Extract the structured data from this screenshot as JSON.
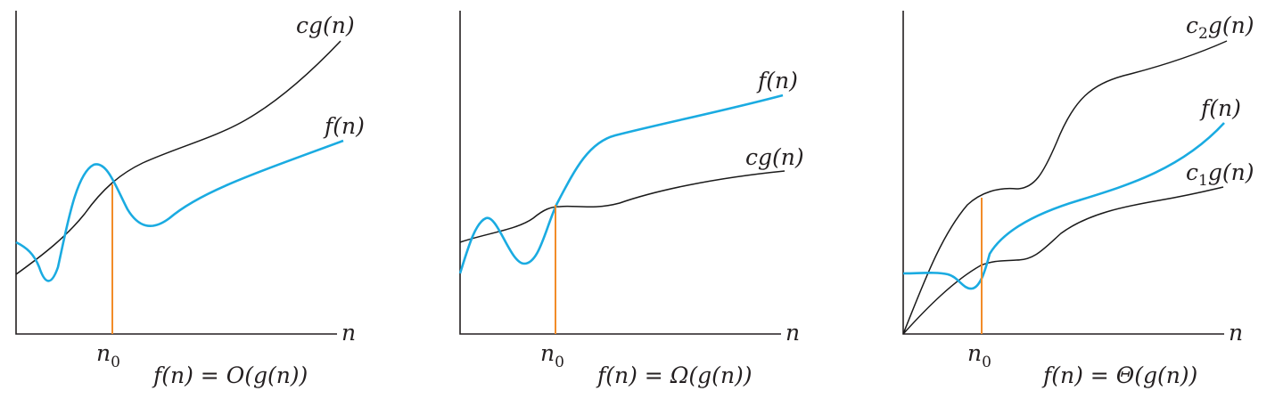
{
  "panels": [
    {
      "caption": "f(n) = O(g(n))",
      "x_axis_label": "n",
      "threshold_label": "n0",
      "curves": [
        {
          "label": "cg(n)",
          "kind": "upper"
        },
        {
          "label": "f(n)",
          "kind": "f"
        }
      ]
    },
    {
      "caption": "f(n) = Ω(g(n))",
      "x_axis_label": "n",
      "threshold_label": "n0",
      "curves": [
        {
          "label": "f(n)",
          "kind": "f"
        },
        {
          "label": "cg(n)",
          "kind": "lower"
        }
      ]
    },
    {
      "caption": "f(n) = Θ(g(n))",
      "x_axis_label": "n",
      "threshold_label": "n0",
      "curves": [
        {
          "label": "c2g(n)",
          "kind": "upper"
        },
        {
          "label": "f(n)",
          "kind": "f"
        },
        {
          "label": "c1g(n)",
          "kind": "lower"
        }
      ]
    }
  ],
  "colors": {
    "f_curve": "#1aabe1",
    "g_curve": "#1a1a1a",
    "threshold": "#f28c28",
    "axis": "#231f20"
  }
}
